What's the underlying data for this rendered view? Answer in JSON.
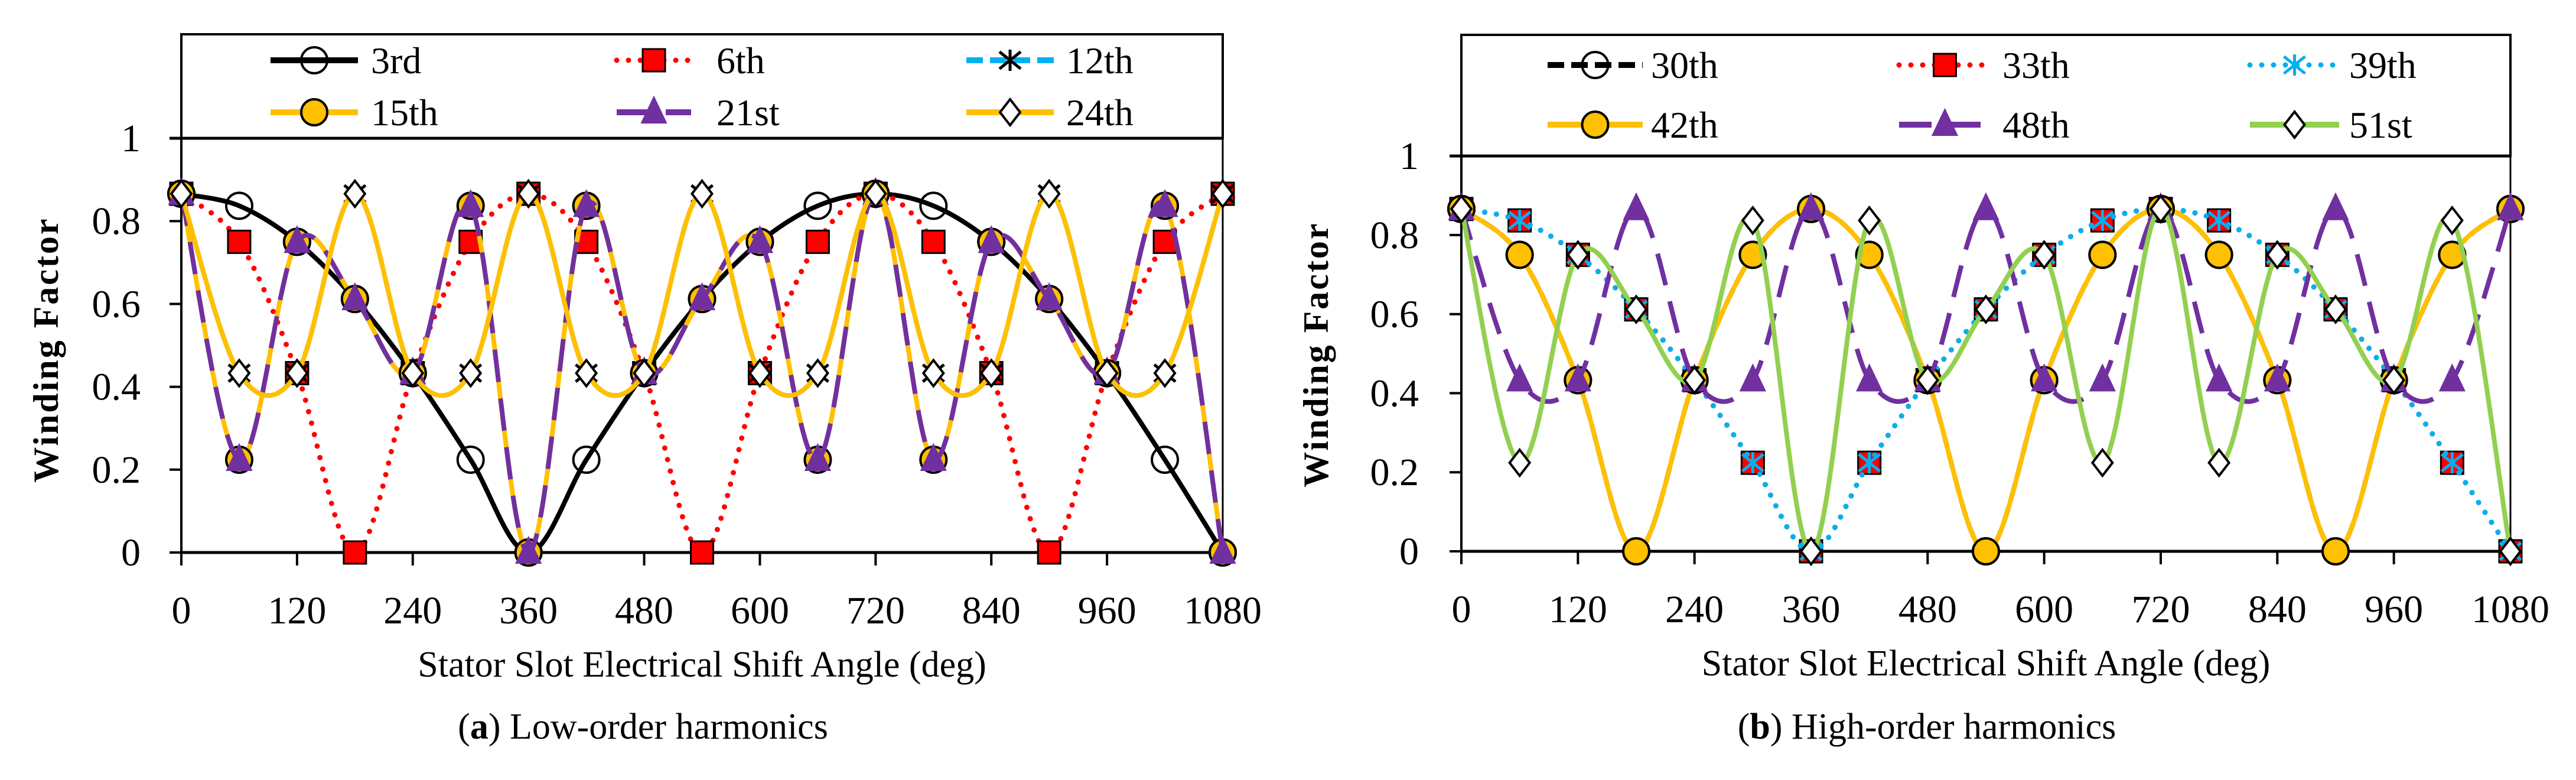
{
  "chart_data": [
    {
      "type": "line",
      "caption": {
        "prefix": "(",
        "label": "a",
        "suffix": ") Low-order harmonics"
      },
      "xlabel": "Stator Slot Electrical Shift Angle (deg)",
      "ylabel": "Winding Factor",
      "xlim": [
        0,
        1080
      ],
      "ylim": [
        0,
        1
      ],
      "xticks": [
        "0",
        "120",
        "240",
        "360",
        "480",
        "600",
        "720",
        "840",
        "960",
        "1080"
      ],
      "yticks": [
        "0",
        "0.2",
        "0.4",
        "0.6",
        "0.8",
        "1"
      ],
      "legend_position": "top",
      "x": [
        0,
        60,
        120,
        180,
        240,
        300,
        360,
        420,
        480,
        540,
        600,
        660,
        720,
        780,
        840,
        900,
        960,
        1020,
        1080
      ],
      "series": [
        {
          "name": "3rd",
          "color": "#000000",
          "line": "solid",
          "marker": "circle-open",
          "values": [
            0.866,
            0.837,
            0.75,
            0.612,
            0.433,
            0.224,
            0,
            0.224,
            0.433,
            0.612,
            0.75,
            0.837,
            0.866,
            0.837,
            0.75,
            0.612,
            0.433,
            0.224,
            0
          ]
        },
        {
          "name": "6th",
          "color": "#FF0000",
          "line": "dotted",
          "marker": "square-filled",
          "values": [
            0.866,
            0.75,
            0.433,
            0,
            0.433,
            0.75,
            0.866,
            0.75,
            0.433,
            0,
            0.433,
            0.75,
            0.866,
            0.75,
            0.433,
            0,
            0.433,
            0.75,
            0.866
          ]
        },
        {
          "name": "12th",
          "color": "#00B0F0",
          "line": "dashed",
          "marker": "asterisk",
          "values": [
            0.866,
            0.433,
            0.433,
            0.866,
            0.433,
            0.433,
            0.866,
            0.433,
            0.433,
            0.866,
            0.433,
            0.433,
            0.866,
            0.433,
            0.433,
            0.866,
            0.433,
            0.433,
            0.866
          ]
        },
        {
          "name": "15th",
          "color": "#FFC000",
          "line": "solid",
          "marker": "circle-filled",
          "values": [
            0.866,
            0.224,
            0.75,
            0.612,
            0.433,
            0.837,
            0,
            0.837,
            0.433,
            0.612,
            0.75,
            0.224,
            0.866,
            0.224,
            0.75,
            0.612,
            0.433,
            0.837,
            0
          ]
        },
        {
          "name": "21st",
          "color": "#7030A0",
          "line": "longdash",
          "marker": "triangle",
          "values": [
            0.866,
            0.224,
            0.75,
            0.612,
            0.433,
            0.837,
            0,
            0.837,
            0.433,
            0.612,
            0.75,
            0.224,
            0.866,
            0.224,
            0.75,
            0.612,
            0.433,
            0.837,
            0
          ]
        },
        {
          "name": "24th",
          "color": "#FFC000",
          "line": "solid",
          "marker": "diamond-open",
          "values": [
            0.866,
            0.433,
            0.433,
            0.866,
            0.433,
            0.433,
            0.866,
            0.433,
            0.433,
            0.866,
            0.433,
            0.433,
            0.866,
            0.433,
            0.433,
            0.866,
            0.433,
            0.433,
            0.866
          ]
        }
      ]
    },
    {
      "type": "line",
      "caption": {
        "prefix": "(",
        "label": "b",
        "suffix": ") High-order harmonics"
      },
      "xlabel": "Stator Slot Electrical Shift Angle (deg)",
      "ylabel": "Winding Factor",
      "xlim": [
        0,
        1080
      ],
      "ylim": [
        0,
        1
      ],
      "xticks": [
        "0",
        "120",
        "240",
        "360",
        "480",
        "600",
        "720",
        "840",
        "960",
        "1080"
      ],
      "yticks": [
        "0",
        "0.2",
        "0.4",
        "0.6",
        "0.8",
        "1"
      ],
      "legend_position": "top",
      "x": [
        0,
        60,
        120,
        180,
        240,
        300,
        360,
        420,
        480,
        540,
        600,
        660,
        720,
        780,
        840,
        900,
        960,
        1020,
        1080
      ],
      "series": [
        {
          "name": "30th",
          "color": "#000000",
          "line": "dashed",
          "marker": "circle-open",
          "values": [
            0.866,
            0.75,
            0.433,
            0,
            0.433,
            0.75,
            0.866,
            0.75,
            0.433,
            0,
            0.433,
            0.75,
            0.866,
            0.75,
            0.433,
            0,
            0.433,
            0.75,
            0.866
          ]
        },
        {
          "name": "33th",
          "color": "#FF0000",
          "line": "dotted",
          "marker": "square-filled",
          "values": [
            0.866,
            0.837,
            0.75,
            0.612,
            0.433,
            0.224,
            0,
            0.224,
            0.433,
            0.612,
            0.75,
            0.837,
            0.866,
            0.837,
            0.75,
            0.612,
            0.433,
            0.224,
            0
          ]
        },
        {
          "name": "39th",
          "color": "#00B0F0",
          "line": "dotted",
          "marker": "asterisk",
          "values": [
            0.866,
            0.837,
            0.75,
            0.612,
            0.433,
            0.224,
            0,
            0.224,
            0.433,
            0.612,
            0.75,
            0.837,
            0.866,
            0.837,
            0.75,
            0.612,
            0.433,
            0.224,
            0
          ]
        },
        {
          "name": "42th",
          "color": "#FFC000",
          "line": "solid",
          "marker": "circle-filled",
          "values": [
            0.866,
            0.75,
            0.433,
            0,
            0.433,
            0.75,
            0.866,
            0.75,
            0.433,
            0,
            0.433,
            0.75,
            0.866,
            0.75,
            0.433,
            0,
            0.433,
            0.75,
            0.866
          ]
        },
        {
          "name": "48th",
          "color": "#7030A0",
          "line": "longdash",
          "marker": "triangle",
          "values": [
            0.866,
            0.433,
            0.433,
            0.866,
            0.433,
            0.433,
            0.866,
            0.433,
            0.433,
            0.866,
            0.433,
            0.433,
            0.866,
            0.433,
            0.433,
            0.866,
            0.433,
            0.433,
            0.866
          ]
        },
        {
          "name": "51st",
          "color": "#92D050",
          "line": "solid",
          "marker": "diamond-open",
          "values": [
            0.866,
            0.224,
            0.75,
            0.612,
            0.433,
            0.837,
            0,
            0.837,
            0.433,
            0.612,
            0.75,
            0.224,
            0.866,
            0.224,
            0.75,
            0.612,
            0.433,
            0.837,
            0
          ]
        }
      ]
    }
  ]
}
